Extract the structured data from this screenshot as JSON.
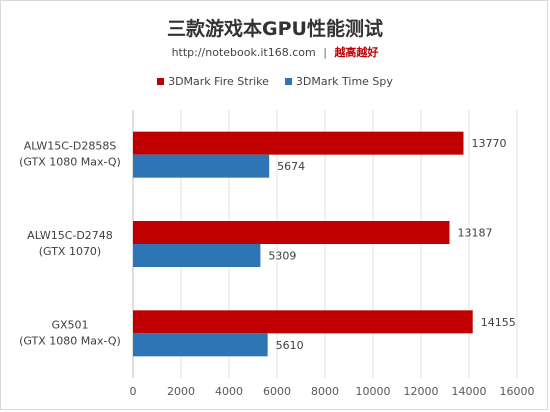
{
  "chart_data": {
    "type": "bar",
    "orientation": "horizontal",
    "title": "三款游戏本GPU性能测试",
    "subtitle_url": "http://notebook.it168.com",
    "subtitle_separator": "|",
    "subtitle_slogan": "越高越好",
    "categories": [
      {
        "line1": "ALW15C-D2858S",
        "line2": "(GTX 1080 Max-Q)"
      },
      {
        "line1": "ALW15C-D2748",
        "line2": "(GTX 1070)"
      },
      {
        "line1": "GX501",
        "line2": "(GTX 1080 Max-Q)"
      }
    ],
    "series": [
      {
        "name": "3DMark Fire Strike",
        "color": "#c00000",
        "values": [
          13770,
          13187,
          14155
        ]
      },
      {
        "name": "3DMark Time Spy",
        "color": "#2e75b6",
        "values": [
          5674,
          5309,
          5610
        ]
      }
    ],
    "xlim": [
      0,
      16000
    ],
    "xticks": [
      0,
      2000,
      4000,
      6000,
      8000,
      10000,
      12000,
      14000,
      16000
    ],
    "grid": true,
    "legend_position": "top"
  }
}
